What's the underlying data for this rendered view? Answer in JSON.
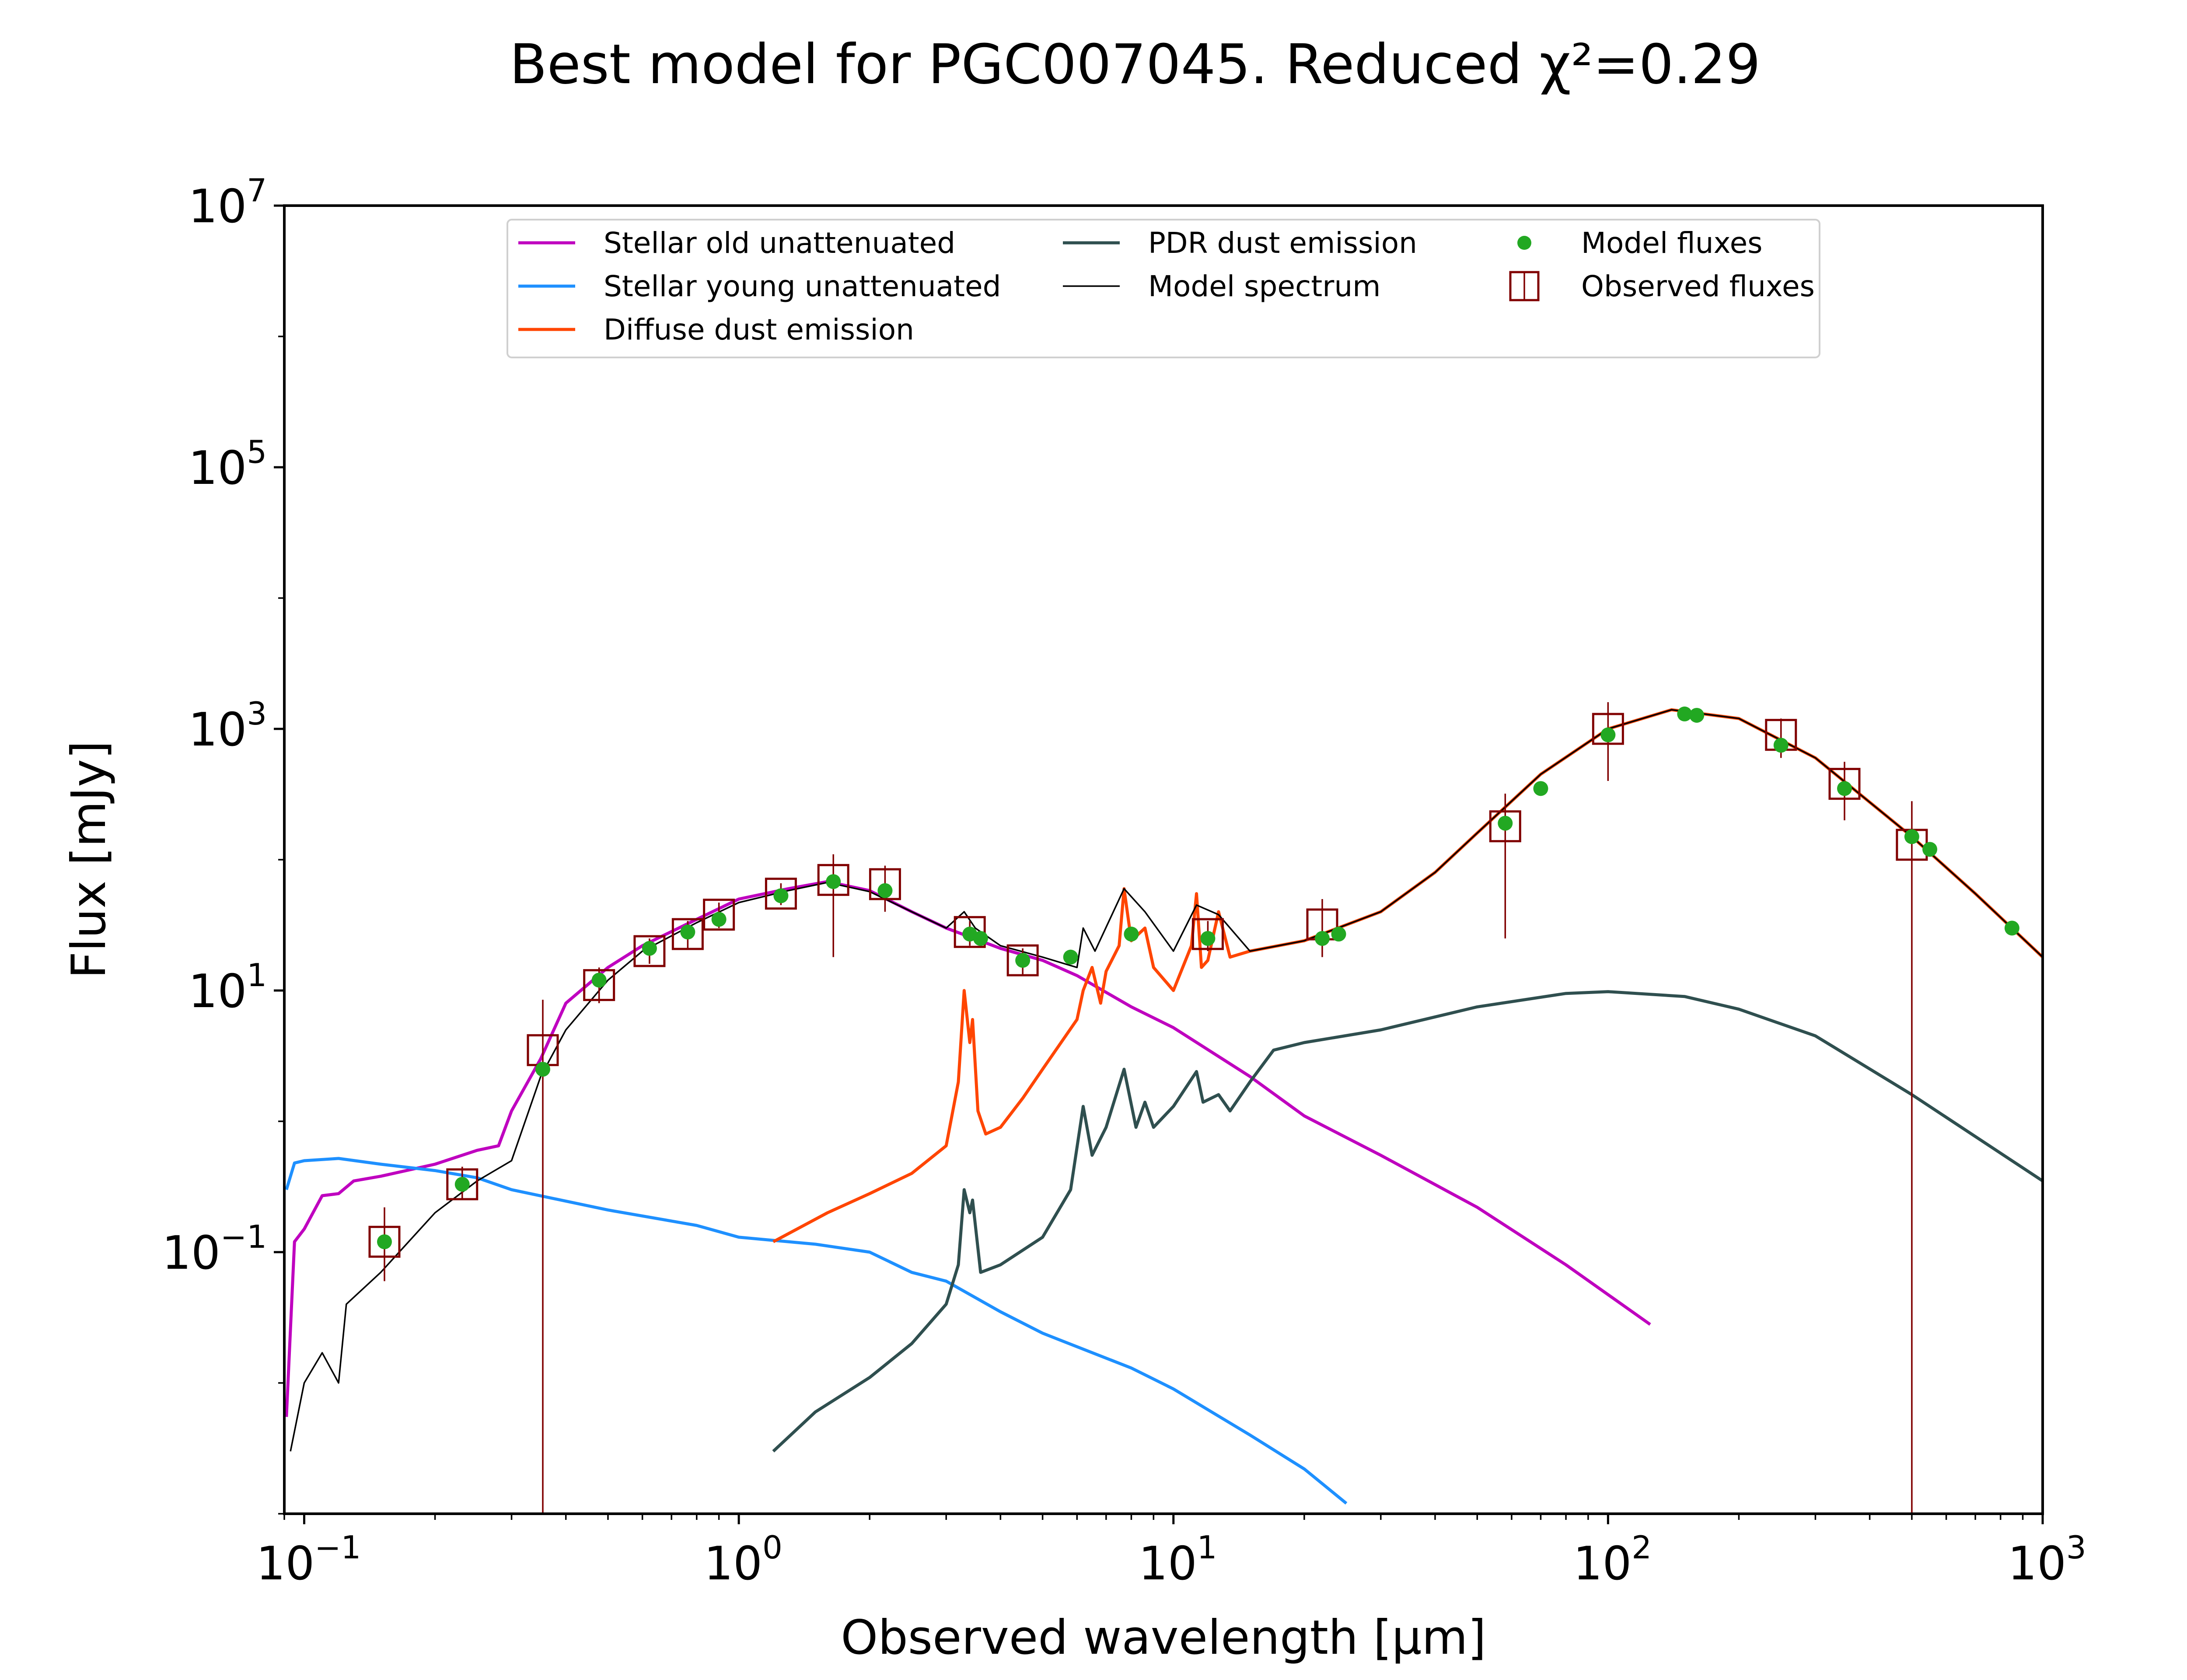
{
  "chart_data": {
    "type": "line",
    "title": "Best model for PGC007045. Reduced χ²=0.29",
    "xlabel": "Observed wavelength [μm]",
    "ylabel": "Flux [mJy]",
    "x_scale": "log",
    "y_scale": "log",
    "xlim": [
      0.09,
      1000
    ],
    "ylim": [
      0.001,
      10000000
    ],
    "x_ticks": [
      {
        "value": 0.1,
        "base": "10",
        "exp": "−1"
      },
      {
        "value": 1,
        "base": "10",
        "exp": "0"
      },
      {
        "value": 10,
        "base": "10",
        "exp": "1"
      },
      {
        "value": 100,
        "base": "10",
        "exp": "2"
      },
      {
        "value": 1000,
        "base": "10",
        "exp": "3"
      }
    ],
    "y_ticks": [
      {
        "value": 0.1,
        "base": "10",
        "exp": "−1"
      },
      {
        "value": 10,
        "base": "10",
        "exp": "1"
      },
      {
        "value": 1000,
        "base": "10",
        "exp": "3"
      },
      {
        "value": 100000,
        "base": "10",
        "exp": "5"
      },
      {
        "value": 10000000,
        "base": "10",
        "exp": "7"
      }
    ],
    "legend_position": "top-center",
    "colors": {
      "stellar_old": "#bf00bf",
      "stellar_young": "#1e90ff",
      "diffuse_dust": "#ff4500",
      "pdr_dust": "#2f4f4f",
      "model_spectrum": "#000000",
      "model_fluxes": "#22a822",
      "observed": "#800000"
    },
    "series": [
      {
        "name": "Stellar old unattenuated",
        "key": "stellar_old",
        "kind": "line",
        "points": [
          [
            0.091,
            0.0055
          ],
          [
            0.095,
            0.12
          ],
          [
            0.1,
            0.15
          ],
          [
            0.11,
            0.27
          ],
          [
            0.12,
            0.28
          ],
          [
            0.13,
            0.35
          ],
          [
            0.15,
            0.38
          ],
          [
            0.2,
            0.47
          ],
          [
            0.25,
            0.6
          ],
          [
            0.28,
            0.65
          ],
          [
            0.3,
            1.2
          ],
          [
            0.35,
            3.0
          ],
          [
            0.4,
            8.0
          ],
          [
            0.5,
            15
          ],
          [
            0.6,
            22
          ],
          [
            0.8,
            35
          ],
          [
            1.0,
            50
          ],
          [
            1.3,
            60
          ],
          [
            1.6,
            68
          ],
          [
            2.0,
            58
          ],
          [
            2.5,
            40
          ],
          [
            3.0,
            30
          ],
          [
            4.0,
            21
          ],
          [
            5.0,
            17
          ],
          [
            6.0,
            13
          ],
          [
            8.0,
            7.5
          ],
          [
            10,
            5.2
          ],
          [
            15,
            2.2
          ],
          [
            20,
            1.1
          ],
          [
            30,
            0.55
          ],
          [
            50,
            0.22
          ],
          [
            80,
            0.08
          ],
          [
            125,
            0.028
          ]
        ]
      },
      {
        "name": "Stellar young unattenuated",
        "key": "stellar_young",
        "kind": "line",
        "points": [
          [
            0.091,
            0.3
          ],
          [
            0.095,
            0.48
          ],
          [
            0.1,
            0.5
          ],
          [
            0.12,
            0.52
          ],
          [
            0.15,
            0.47
          ],
          [
            0.2,
            0.42
          ],
          [
            0.25,
            0.37
          ],
          [
            0.3,
            0.3
          ],
          [
            0.5,
            0.21
          ],
          [
            0.8,
            0.16
          ],
          [
            1.0,
            0.13
          ],
          [
            1.5,
            0.115
          ],
          [
            2.0,
            0.1
          ],
          [
            2.5,
            0.07
          ],
          [
            3.0,
            0.06
          ],
          [
            4.0,
            0.035
          ],
          [
            5.0,
            0.024
          ],
          [
            8.0,
            0.013
          ],
          [
            10,
            0.009
          ],
          [
            15,
            0.004
          ],
          [
            20,
            0.0022
          ],
          [
            25,
            0.0012
          ]
        ]
      },
      {
        "name": "Diffuse dust emission",
        "key": "diffuse_dust",
        "kind": "line",
        "points": [
          [
            1.2,
            0.12
          ],
          [
            1.6,
            0.2
          ],
          [
            2.0,
            0.28
          ],
          [
            2.5,
            0.4
          ],
          [
            3.0,
            0.65
          ],
          [
            3.2,
            2.0
          ],
          [
            3.3,
            10
          ],
          [
            3.4,
            4
          ],
          [
            3.45,
            6
          ],
          [
            3.55,
            1.2
          ],
          [
            3.7,
            0.8
          ],
          [
            4.0,
            0.9
          ],
          [
            4.5,
            1.5
          ],
          [
            5.0,
            2.5
          ],
          [
            6.0,
            6
          ],
          [
            6.2,
            10
          ],
          [
            6.5,
            15
          ],
          [
            6.8,
            8
          ],
          [
            7.0,
            14
          ],
          [
            7.5,
            22
          ],
          [
            7.7,
            60
          ],
          [
            8.0,
            24
          ],
          [
            8.6,
            30
          ],
          [
            9.0,
            15
          ],
          [
            10,
            10
          ],
          [
            11.0,
            22
          ],
          [
            11.3,
            55
          ],
          [
            11.6,
            15
          ],
          [
            12.0,
            17
          ],
          [
            12.7,
            40
          ],
          [
            13.5,
            18
          ],
          [
            15,
            20
          ],
          [
            20,
            24
          ],
          [
            30,
            40
          ],
          [
            40,
            80
          ],
          [
            50,
            160
          ],
          [
            70,
            450
          ],
          [
            100,
            1000
          ],
          [
            140,
            1400
          ],
          [
            200,
            1200
          ],
          [
            300,
            600
          ],
          [
            500,
            150
          ],
          [
            700,
            55
          ],
          [
            1000,
            18
          ]
        ]
      },
      {
        "name": "PDR dust emission",
        "key": "pdr_dust",
        "kind": "line",
        "points": [
          [
            1.2,
            0.003
          ],
          [
            1.5,
            0.006
          ],
          [
            2.0,
            0.011
          ],
          [
            2.5,
            0.02
          ],
          [
            3.0,
            0.04
          ],
          [
            3.2,
            0.08
          ],
          [
            3.3,
            0.3
          ],
          [
            3.4,
            0.2
          ],
          [
            3.45,
            0.25
          ],
          [
            3.6,
            0.07
          ],
          [
            4.0,
            0.08
          ],
          [
            5.0,
            0.13
          ],
          [
            5.8,
            0.3
          ],
          [
            6.2,
            1.3
          ],
          [
            6.5,
            0.55
          ],
          [
            7.0,
            0.9
          ],
          [
            7.7,
            2.5
          ],
          [
            8.2,
            0.9
          ],
          [
            8.6,
            1.4
          ],
          [
            9.0,
            0.9
          ],
          [
            10,
            1.3
          ],
          [
            11.3,
            2.4
          ],
          [
            11.7,
            1.4
          ],
          [
            12.7,
            1.6
          ],
          [
            13.5,
            1.2
          ],
          [
            15,
            2.0
          ],
          [
            17,
            3.5
          ],
          [
            20,
            4.0
          ],
          [
            30,
            5.0
          ],
          [
            50,
            7.5
          ],
          [
            80,
            9.5
          ],
          [
            100,
            9.8
          ],
          [
            150,
            9.0
          ],
          [
            200,
            7.2
          ],
          [
            300,
            4.5
          ],
          [
            500,
            1.6
          ],
          [
            1000,
            0.35
          ]
        ]
      },
      {
        "name": "Model spectrum",
        "key": "model_spectrum",
        "kind": "line",
        "points": [
          [
            0.093,
            0.003
          ],
          [
            0.1,
            0.01
          ],
          [
            0.11,
            0.017
          ],
          [
            0.12,
            0.01
          ],
          [
            0.125,
            0.04
          ],
          [
            0.15,
            0.07
          ],
          [
            0.2,
            0.2
          ],
          [
            0.25,
            0.35
          ],
          [
            0.3,
            0.5
          ],
          [
            0.35,
            2.2
          ],
          [
            0.4,
            5.0
          ],
          [
            0.5,
            12
          ],
          [
            0.6,
            20
          ],
          [
            0.8,
            33
          ],
          [
            1.0,
            47
          ],
          [
            1.3,
            58
          ],
          [
            1.6,
            67
          ],
          [
            2.0,
            57
          ],
          [
            2.5,
            40
          ],
          [
            3.0,
            30
          ],
          [
            3.3,
            40
          ],
          [
            3.5,
            30
          ],
          [
            4.0,
            22
          ],
          [
            5.0,
            18
          ],
          [
            6.0,
            15
          ],
          [
            6.2,
            30
          ],
          [
            6.6,
            20
          ],
          [
            7.7,
            60
          ],
          [
            8.6,
            40
          ],
          [
            10,
            20
          ],
          [
            11.3,
            45
          ],
          [
            12.7,
            38
          ],
          [
            15,
            20
          ],
          [
            20,
            24
          ],
          [
            30,
            40
          ],
          [
            40,
            80
          ],
          [
            50,
            160
          ],
          [
            70,
            450
          ],
          [
            100,
            1000
          ],
          [
            140,
            1400
          ],
          [
            200,
            1200
          ],
          [
            300,
            600
          ],
          [
            500,
            150
          ],
          [
            700,
            55
          ],
          [
            1000,
            18
          ]
        ]
      },
      {
        "name": "Model fluxes",
        "key": "model_fluxes",
        "kind": "scatter",
        "points": [
          [
            0.153,
            0.12
          ],
          [
            0.231,
            0.33
          ],
          [
            0.354,
            2.5
          ],
          [
            0.477,
            12
          ],
          [
            0.623,
            21
          ],
          [
            0.763,
            28
          ],
          [
            0.9,
            35
          ],
          [
            1.25,
            53
          ],
          [
            1.65,
            68
          ],
          [
            2.17,
            58
          ],
          [
            3.4,
            27
          ],
          [
            3.6,
            25
          ],
          [
            4.5,
            17
          ],
          [
            5.8,
            18
          ],
          [
            8.0,
            27
          ],
          [
            12,
            25
          ],
          [
            22,
            25
          ],
          [
            24,
            27
          ],
          [
            58,
            190
          ],
          [
            70,
            350
          ],
          [
            100,
            900
          ],
          [
            150,
            1300
          ],
          [
            160,
            1270
          ],
          [
            250,
            750
          ],
          [
            350,
            350
          ],
          [
            500,
            150
          ],
          [
            550,
            120
          ],
          [
            850,
            30
          ]
        ]
      },
      {
        "name": "Observed fluxes",
        "key": "observed",
        "kind": "errorbar",
        "points": [
          {
            "x": 0.153,
            "y": 0.12,
            "lo": 0.06,
            "hi": 0.22
          },
          {
            "x": 0.231,
            "y": 0.33,
            "lo": 0.25,
            "hi": 0.45
          },
          {
            "x": 0.354,
            "y": 3.5,
            "lo": 0.001,
            "hi": 8.5
          },
          {
            "x": 0.477,
            "y": 11,
            "lo": 8,
            "hi": 15
          },
          {
            "x": 0.623,
            "y": 20,
            "lo": 16,
            "hi": 25
          },
          {
            "x": 0.763,
            "y": 27,
            "lo": 21,
            "hi": 34
          },
          {
            "x": 0.9,
            "y": 38,
            "lo": 30,
            "hi": 47
          },
          {
            "x": 1.25,
            "y": 55,
            "lo": 45,
            "hi": 66
          },
          {
            "x": 1.65,
            "y": 70,
            "lo": 18,
            "hi": 110
          },
          {
            "x": 2.17,
            "y": 65,
            "lo": 40,
            "hi": 90
          },
          {
            "x": 3.4,
            "y": 28,
            "lo": 22,
            "hi": 34
          },
          {
            "x": 4.5,
            "y": 17,
            "lo": 13,
            "hi": 21
          },
          {
            "x": 12,
            "y": 27,
            "lo": 20,
            "hi": 34
          },
          {
            "x": 22,
            "y": 32,
            "lo": 18,
            "hi": 50
          },
          {
            "x": 58,
            "y": 180,
            "lo": 25,
            "hi": 320
          },
          {
            "x": 100,
            "y": 1000,
            "lo": 400,
            "hi": 1600
          },
          {
            "x": 250,
            "y": 900,
            "lo": 600,
            "hi": 1200
          },
          {
            "x": 350,
            "y": 380,
            "lo": 200,
            "hi": 560
          },
          {
            "x": 500,
            "y": 130,
            "lo": 0.001,
            "hi": 280
          }
        ]
      }
    ],
    "legend": [
      {
        "key": "stellar_old",
        "label": "Stellar old unattenuated",
        "style": "line"
      },
      {
        "key": "pdr_dust",
        "label": "PDR dust emission",
        "style": "line"
      },
      {
        "key": "model_fluxes",
        "label": "Model fluxes",
        "style": "dot"
      },
      {
        "key": "stellar_young",
        "label": "Stellar young unattenuated",
        "style": "line"
      },
      {
        "key": "model_spectrum",
        "label": "Model spectrum",
        "style": "thinline"
      },
      {
        "key": "observed",
        "label": "Observed fluxes",
        "style": "box"
      },
      {
        "key": "diffuse_dust",
        "label": "Diffuse dust emission",
        "style": "line"
      }
    ]
  }
}
